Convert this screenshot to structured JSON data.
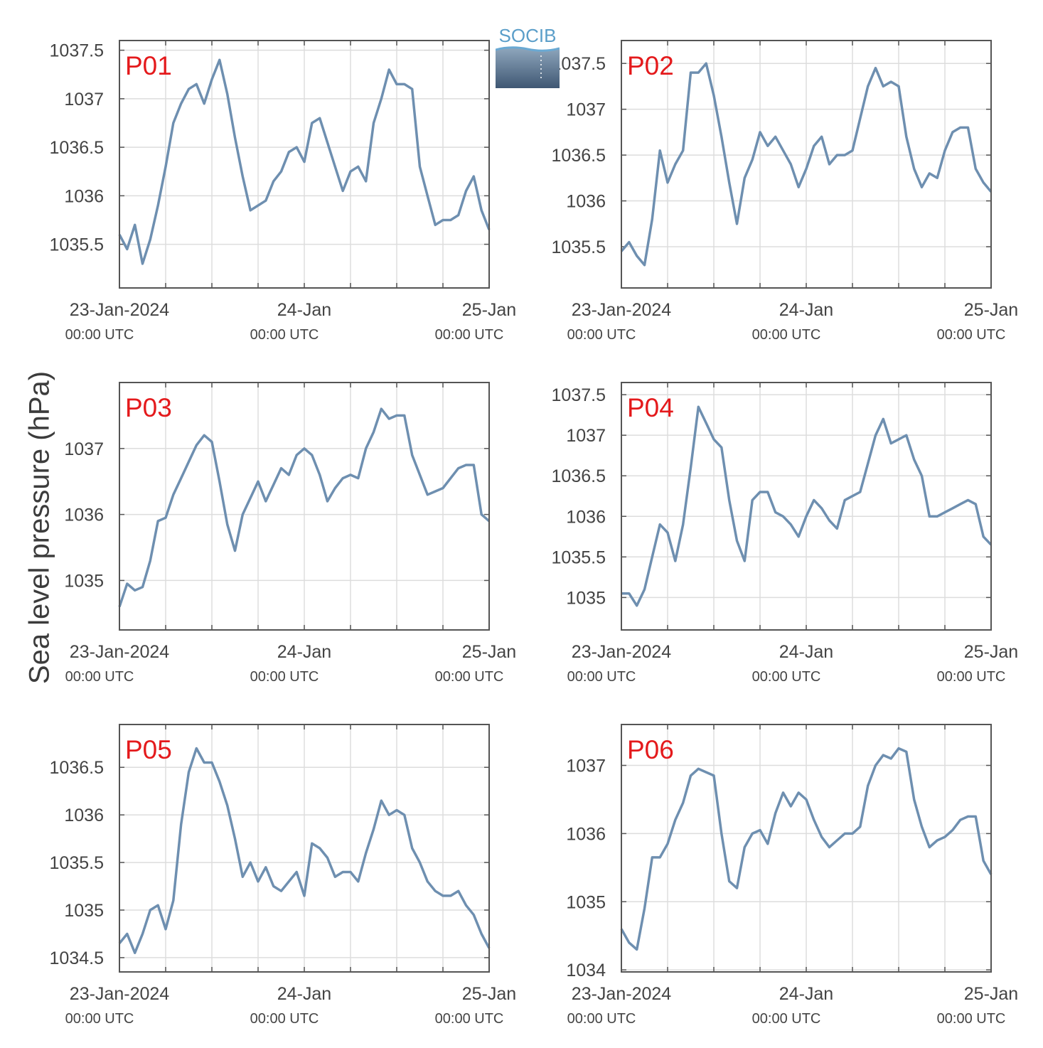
{
  "ylabel": "Sea level pressure (hPa)",
  "logo_text": "SOCIB",
  "colors": {
    "line": "#6e8fb0",
    "panel_label": "#e41a1c",
    "grid": "#dddddd",
    "axis": "#555555",
    "text": "#444444"
  },
  "chart_data": [
    {
      "type": "line",
      "label": "P01",
      "x_ticks": [
        {
          "line1": "23-Jan-2024",
          "line2": "00:00 UTC"
        },
        {
          "line1": "24-Jan",
          "line2": "00:00 UTC"
        },
        {
          "line1": "25-Jan",
          "line2": "00:00 UTC"
        }
      ],
      "xlim": [
        0,
        48
      ],
      "ylim": [
        1035.05,
        1037.6
      ],
      "yticks": [
        1035.5,
        1036,
        1036.5,
        1037,
        1037.5
      ],
      "ytick_labels": [
        "1035.5",
        "1036",
        "1036.5",
        "1037",
        "1037.5"
      ],
      "x_hours": [
        0,
        1,
        2,
        3,
        4,
        5,
        6,
        7,
        8,
        9,
        10,
        11,
        12,
        13,
        14,
        15,
        16,
        17,
        18,
        19,
        20,
        21,
        22,
        23,
        24,
        25,
        26,
        27,
        28,
        29,
        30,
        31,
        32,
        33,
        34,
        35,
        36,
        37,
        38,
        39,
        40,
        41,
        42,
        43,
        44,
        45,
        46,
        47,
        48
      ],
      "y": [
        1035.6,
        1035.45,
        1035.7,
        1035.3,
        1035.55,
        1035.9,
        1036.3,
        1036.75,
        1036.95,
        1037.1,
        1037.15,
        1036.95,
        1037.2,
        1037.4,
        1037.05,
        1036.6,
        1036.2,
        1035.85,
        1035.9,
        1035.95,
        1036.15,
        1036.25,
        1036.45,
        1036.5,
        1036.35,
        1036.75,
        1036.8,
        1036.55,
        1036.3,
        1036.05,
        1036.25,
        1036.3,
        1036.15,
        1036.75,
        1037.0,
        1037.3,
        1037.15,
        1037.15,
        1037.1,
        1036.3,
        1036.0,
        1035.7,
        1035.75,
        1035.75,
        1035.8,
        1036.05,
        1036.2,
        1035.85,
        1035.65
      ]
    },
    {
      "type": "line",
      "label": "P02",
      "x_ticks": [
        {
          "line1": "23-Jan-2024",
          "line2": "00:00 UTC"
        },
        {
          "line1": "24-Jan",
          "line2": "00:00 UTC"
        },
        {
          "line1": "25-Jan",
          "line2": "00:00 UTC"
        }
      ],
      "xlim": [
        0,
        48
      ],
      "ylim": [
        1035.05,
        1037.75
      ],
      "yticks": [
        1035.5,
        1036,
        1036.5,
        1037,
        1037.5
      ],
      "ytick_labels": [
        "1035.5",
        "1036",
        "1036.5",
        "1037",
        "1037.5"
      ],
      "x_hours": [
        0,
        1,
        2,
        3,
        4,
        5,
        6,
        7,
        8,
        9,
        10,
        11,
        12,
        13,
        14,
        15,
        16,
        17,
        18,
        19,
        20,
        21,
        22,
        23,
        24,
        25,
        26,
        27,
        28,
        29,
        30,
        31,
        32,
        33,
        34,
        35,
        36,
        37,
        38,
        39,
        40,
        41,
        42,
        43,
        44,
        45,
        46,
        47,
        48
      ],
      "y": [
        1035.45,
        1035.55,
        1035.4,
        1035.3,
        1035.8,
        1036.55,
        1036.2,
        1036.4,
        1036.55,
        1037.4,
        1037.4,
        1037.5,
        1037.15,
        1036.7,
        1036.2,
        1035.75,
        1036.25,
        1036.45,
        1036.75,
        1036.6,
        1036.7,
        1036.55,
        1036.4,
        1036.15,
        1036.35,
        1036.6,
        1036.7,
        1036.4,
        1036.5,
        1036.5,
        1036.55,
        1036.9,
        1037.25,
        1037.45,
        1037.25,
        1037.3,
        1037.25,
        1036.7,
        1036.35,
        1036.15,
        1036.3,
        1036.25,
        1036.55,
        1036.75,
        1036.8,
        1036.8,
        1036.35,
        1036.2,
        1036.1
      ]
    },
    {
      "type": "line",
      "label": "P03",
      "x_ticks": [
        {
          "line1": "23-Jan-2024",
          "line2": "00:00 UTC"
        },
        {
          "line1": "24-Jan",
          "line2": "00:00 UTC"
        },
        {
          "line1": "25-Jan",
          "line2": "00:00 UTC"
        }
      ],
      "xlim": [
        0,
        48
      ],
      "ylim": [
        1034.25,
        1038.0
      ],
      "yticks": [
        1035,
        1036,
        1037
      ],
      "ytick_labels": [
        "1035",
        "1036",
        "1037"
      ],
      "x_hours": [
        0,
        1,
        2,
        3,
        4,
        5,
        6,
        7,
        8,
        9,
        10,
        11,
        12,
        13,
        14,
        15,
        16,
        17,
        18,
        19,
        20,
        21,
        22,
        23,
        24,
        25,
        26,
        27,
        28,
        29,
        30,
        31,
        32,
        33,
        34,
        35,
        36,
        37,
        38,
        39,
        40,
        41,
        42,
        43,
        44,
        45,
        46,
        47,
        48
      ],
      "y": [
        1034.6,
        1034.95,
        1034.85,
        1034.9,
        1035.3,
        1035.9,
        1035.95,
        1036.3,
        1036.55,
        1036.8,
        1037.05,
        1037.2,
        1037.1,
        1036.5,
        1035.85,
        1035.45,
        1036.0,
        1036.25,
        1036.5,
        1036.2,
        1036.45,
        1036.7,
        1036.6,
        1036.9,
        1037.0,
        1036.9,
        1036.6,
        1036.2,
        1036.4,
        1036.55,
        1036.6,
        1036.55,
        1037.0,
        1037.25,
        1037.6,
        1037.45,
        1037.5,
        1037.5,
        1036.9,
        1036.6,
        1036.3,
        1036.35,
        1036.4,
        1036.55,
        1036.7,
        1036.75,
        1036.75,
        1036.0,
        1035.9
      ]
    },
    {
      "type": "line",
      "label": "P04",
      "x_ticks": [
        {
          "line1": "23-Jan-2024",
          "line2": "00:00 UTC"
        },
        {
          "line1": "24-Jan",
          "line2": "00:00 UTC"
        },
        {
          "line1": "25-Jan",
          "line2": "00:00 UTC"
        }
      ],
      "xlim": [
        0,
        48
      ],
      "ylim": [
        1034.6,
        1037.65
      ],
      "yticks": [
        1035,
        1035.5,
        1036,
        1036.5,
        1037,
        1037.5
      ],
      "ytick_labels": [
        "1035",
        "1035.5",
        "1036",
        "1036.5",
        "1037",
        "1037.5"
      ],
      "x_hours": [
        0,
        1,
        2,
        3,
        4,
        5,
        6,
        7,
        8,
        9,
        10,
        11,
        12,
        13,
        14,
        15,
        16,
        17,
        18,
        19,
        20,
        21,
        22,
        23,
        24,
        25,
        26,
        27,
        28,
        29,
        30,
        31,
        32,
        33,
        34,
        35,
        36,
        37,
        38,
        39,
        40,
        41,
        42,
        43,
        44,
        45,
        46,
        47,
        48
      ],
      "y": [
        1035.05,
        1035.05,
        1034.9,
        1035.1,
        1035.5,
        1035.9,
        1035.8,
        1035.45,
        1035.9,
        1036.6,
        1037.35,
        1037.15,
        1036.95,
        1036.85,
        1036.2,
        1035.7,
        1035.45,
        1036.2,
        1036.3,
        1036.3,
        1036.05,
        1036.0,
        1035.9,
        1035.75,
        1036.0,
        1036.2,
        1036.1,
        1035.95,
        1035.85,
        1036.2,
        1036.25,
        1036.3,
        1036.65,
        1037.0,
        1037.2,
        1036.9,
        1036.95,
        1037.0,
        1036.7,
        1036.5,
        1036.0,
        1036.0,
        1036.05,
        1036.1,
        1036.15,
        1036.2,
        1036.15,
        1035.75,
        1035.65
      ]
    },
    {
      "type": "line",
      "label": "P05",
      "x_ticks": [
        {
          "line1": "23-Jan-2024",
          "line2": "00:00 UTC"
        },
        {
          "line1": "24-Jan",
          "line2": "00:00 UTC"
        },
        {
          "line1": "25-Jan",
          "line2": "00:00 UTC"
        }
      ],
      "xlim": [
        0,
        48
      ],
      "ylim": [
        1034.35,
        1036.95
      ],
      "yticks": [
        1034.5,
        1035,
        1035.5,
        1036,
        1036.5
      ],
      "ytick_labels": [
        "1034.5",
        "1035",
        "1035.5",
        "1036",
        "1036.5"
      ],
      "x_hours": [
        0,
        1,
        2,
        3,
        4,
        5,
        6,
        7,
        8,
        9,
        10,
        11,
        12,
        13,
        14,
        15,
        16,
        17,
        18,
        19,
        20,
        21,
        22,
        23,
        24,
        25,
        26,
        27,
        28,
        29,
        30,
        31,
        32,
        33,
        34,
        35,
        36,
        37,
        38,
        39,
        40,
        41,
        42,
        43,
        44,
        45,
        46,
        47,
        48
      ],
      "y": [
        1034.65,
        1034.75,
        1034.55,
        1034.75,
        1035.0,
        1035.05,
        1034.8,
        1035.1,
        1035.9,
        1036.45,
        1036.7,
        1036.55,
        1036.55,
        1036.35,
        1036.1,
        1035.75,
        1035.35,
        1035.5,
        1035.3,
        1035.45,
        1035.25,
        1035.2,
        1035.3,
        1035.4,
        1035.15,
        1035.7,
        1035.65,
        1035.55,
        1035.35,
        1035.4,
        1035.4,
        1035.3,
        1035.6,
        1035.85,
        1036.15,
        1036.0,
        1036.05,
        1036.0,
        1035.65,
        1035.5,
        1035.3,
        1035.2,
        1035.15,
        1035.15,
        1035.2,
        1035.05,
        1034.95,
        1034.75,
        1034.6
      ]
    },
    {
      "type": "line",
      "label": "P06",
      "x_ticks": [
        {
          "line1": "23-Jan-2024",
          "line2": "00:00 UTC"
        },
        {
          "line1": "24-Jan",
          "line2": "00:00 UTC"
        },
        {
          "line1": "25-Jan",
          "line2": "00:00 UTC"
        }
      ],
      "xlim": [
        0,
        48
      ],
      "ylim": [
        1033.97,
        1037.6
      ],
      "yticks": [
        1034,
        1035,
        1036,
        1037
      ],
      "ytick_labels": [
        "1034",
        "1035",
        "1036",
        "1037"
      ],
      "x_hours": [
        0,
        1,
        2,
        3,
        4,
        5,
        6,
        7,
        8,
        9,
        10,
        11,
        12,
        13,
        14,
        15,
        16,
        17,
        18,
        19,
        20,
        21,
        22,
        23,
        24,
        25,
        26,
        27,
        28,
        29,
        30,
        31,
        32,
        33,
        34,
        35,
        36,
        37,
        38,
        39,
        40,
        41,
        42,
        43,
        44,
        45,
        46,
        47,
        48
      ],
      "y": [
        1034.6,
        1034.4,
        1034.3,
        1034.9,
        1035.65,
        1035.65,
        1035.85,
        1036.2,
        1036.45,
        1036.85,
        1036.95,
        1036.9,
        1036.85,
        1036.0,
        1035.3,
        1035.2,
        1035.8,
        1036.0,
        1036.05,
        1035.85,
        1036.3,
        1036.6,
        1036.4,
        1036.6,
        1036.5,
        1036.2,
        1035.95,
        1035.8,
        1035.9,
        1036.0,
        1036.0,
        1036.1,
        1036.7,
        1037.0,
        1037.15,
        1037.1,
        1037.25,
        1037.2,
        1036.5,
        1036.1,
        1035.8,
        1035.9,
        1035.95,
        1036.05,
        1036.2,
        1036.25,
        1036.25,
        1035.6,
        1035.4
      ]
    }
  ]
}
